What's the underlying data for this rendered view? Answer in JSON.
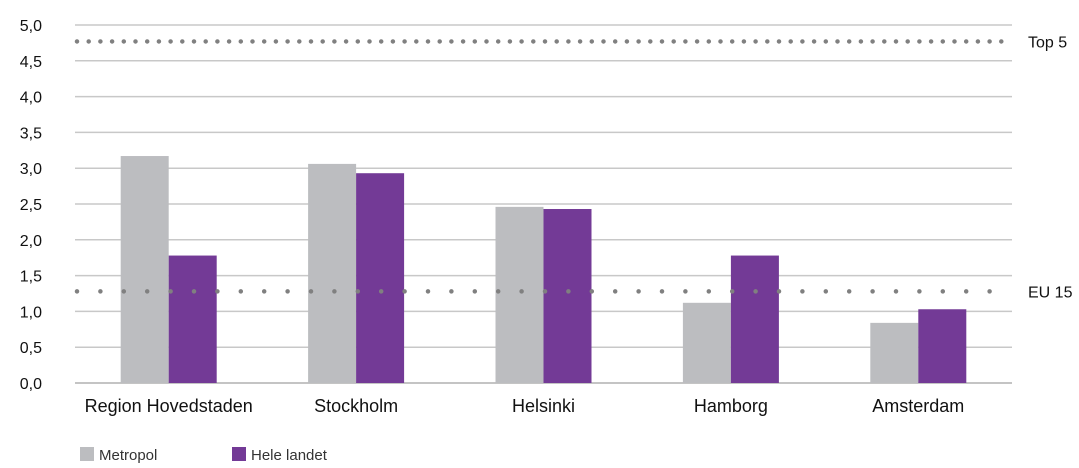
{
  "chart_data": {
    "type": "bar",
    "title": "",
    "xlabel": "",
    "ylabel": "",
    "ylim": [
      0,
      5
    ],
    "ytick_step": 0.5,
    "ytick_labels": [
      "0,0",
      "0,5",
      "1,0",
      "1,5",
      "2,0",
      "2,5",
      "3,0",
      "3,5",
      "4,0",
      "4,5",
      "5,0"
    ],
    "categories": [
      "Region Hovedstaden",
      "Stockholm",
      "Helsinki",
      "Hamborg",
      "Amsterdam"
    ],
    "series": [
      {
        "name": "Metropol",
        "color": "#bcbdc0",
        "values": [
          3.17,
          3.06,
          2.46,
          1.12,
          0.84
        ]
      },
      {
        "name": "Hele landet",
        "color": "#733a96",
        "values": [
          1.78,
          2.93,
          2.43,
          1.78,
          1.03
        ]
      }
    ],
    "reference_lines": [
      {
        "label": "Top 5",
        "value": 4.77,
        "style": "dotted",
        "color": "#808080"
      },
      {
        "label": "EU 15",
        "value": 1.28,
        "style": "dotted",
        "color": "#808080"
      }
    ],
    "grid": true,
    "grid_color": "#c8c8c8",
    "legend_position": "bottom-left"
  }
}
